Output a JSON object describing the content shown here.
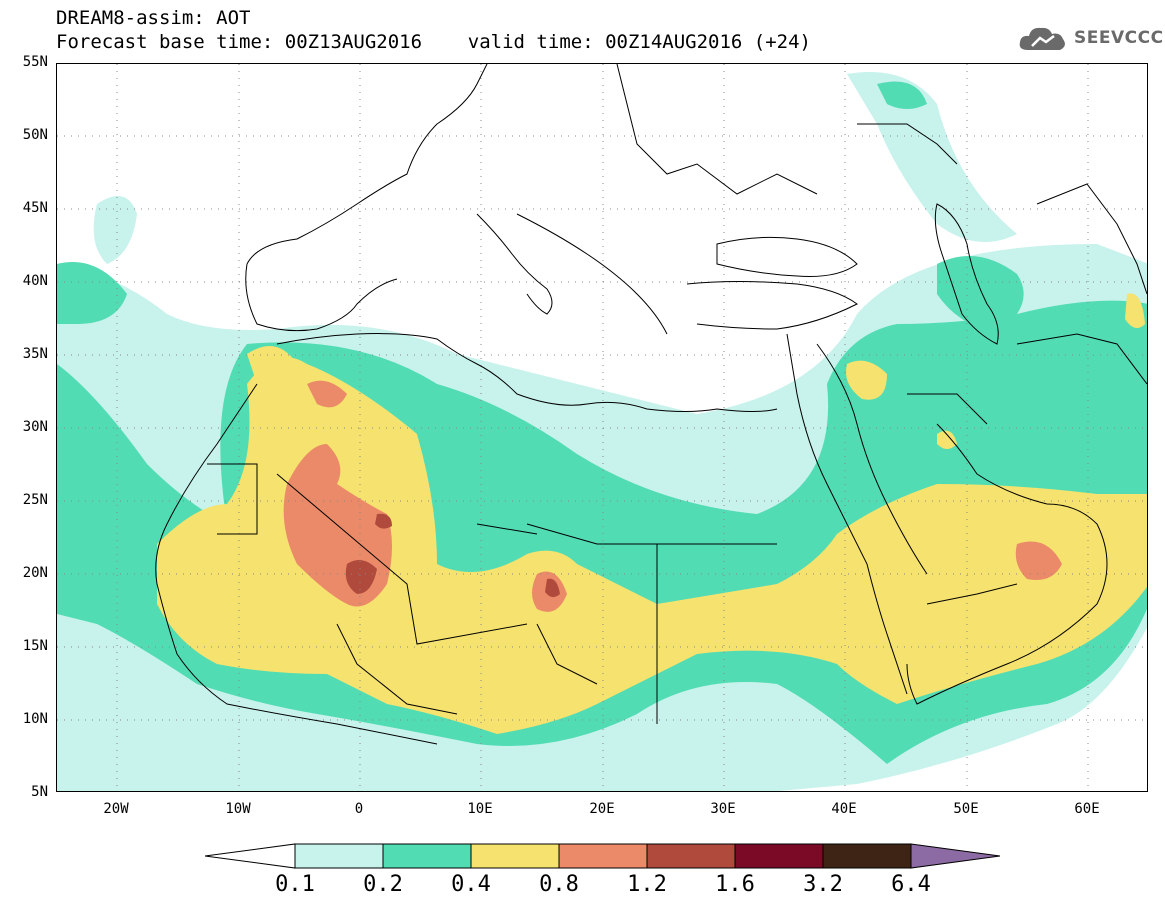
{
  "title": {
    "line1": "DREAM8-assim: AOT",
    "line2": "Forecast base time: 00Z13AUG2016    valid time: 00Z14AUG2016 (+24)"
  },
  "logo": {
    "text": "SEEVCCC",
    "icon": "cloud-icon"
  },
  "map": {
    "lat_labels": [
      "55N",
      "50N",
      "45N",
      "40N",
      "35N",
      "30N",
      "25N",
      "20N",
      "15N",
      "10N",
      "5N"
    ],
    "lon_labels": [
      "20W",
      "10W",
      "0",
      "10E",
      "20E",
      "30E",
      "40E",
      "50E",
      "60E"
    ],
    "grid": true
  },
  "colorbar": {
    "labels": [
      "0.1",
      "0.2",
      "0.4",
      "0.8",
      "1.2",
      "1.6",
      "3.2",
      "6.4"
    ],
    "colors": [
      "#ffffff",
      "#c8f2ec",
      "#52dcb4",
      "#f6e26e",
      "#ea8a68",
      "#b04a3c",
      "#7a0a26",
      "#3e2414",
      "#8c6aa4"
    ]
  }
}
